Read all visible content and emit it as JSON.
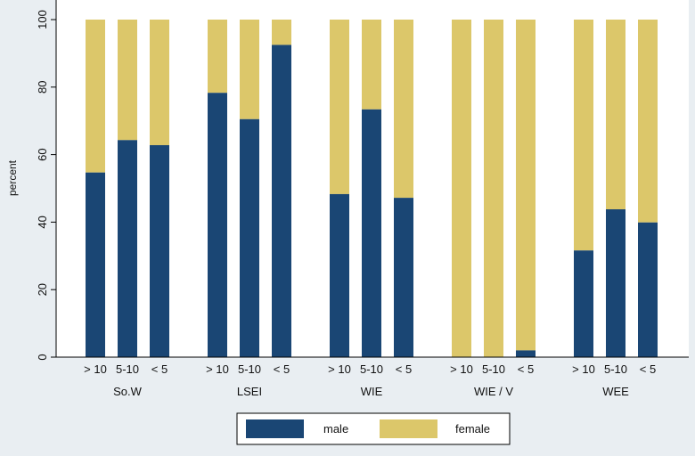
{
  "chart_data": {
    "type": "bar",
    "stacked": true,
    "title": "",
    "ylabel": "percent",
    "xlabel": "",
    "ylim": [
      0,
      100
    ],
    "yticks": [
      0,
      20,
      40,
      60,
      80,
      100
    ],
    "groups": [
      {
        "label": "So.W",
        "categories": [
          "> 10",
          "5-10",
          "< 5"
        ],
        "male": [
          54.7,
          64.3,
          62.8
        ],
        "female": [
          45.3,
          35.7,
          37.2
        ]
      },
      {
        "label": "LSEI",
        "categories": [
          "> 10",
          "5-10",
          "< 5"
        ],
        "male": [
          78.3,
          70.5,
          92.5
        ],
        "female": [
          21.7,
          29.5,
          7.5
        ]
      },
      {
        "label": "WIE",
        "categories": [
          "> 10",
          "5-10",
          "< 5"
        ],
        "male": [
          48.3,
          73.4,
          47.2
        ],
        "female": [
          51.7,
          26.6,
          52.8
        ]
      },
      {
        "label": "WIE / V",
        "categories": [
          "> 10",
          "5-10",
          "< 5"
        ],
        "male": [
          0,
          0,
          2.0
        ],
        "female": [
          100,
          100,
          98.0
        ]
      },
      {
        "label": "WEE",
        "categories": [
          "> 10",
          "5-10",
          "< 5"
        ],
        "male": [
          31.6,
          43.8,
          39.9
        ],
        "female": [
          68.4,
          56.2,
          60.1
        ]
      }
    ],
    "series": [
      {
        "name": "male",
        "color": "#1a4674"
      },
      {
        "name": "female",
        "color": "#dcc76a"
      }
    ],
    "legend": {
      "position": "bottom"
    },
    "grid": false
  }
}
